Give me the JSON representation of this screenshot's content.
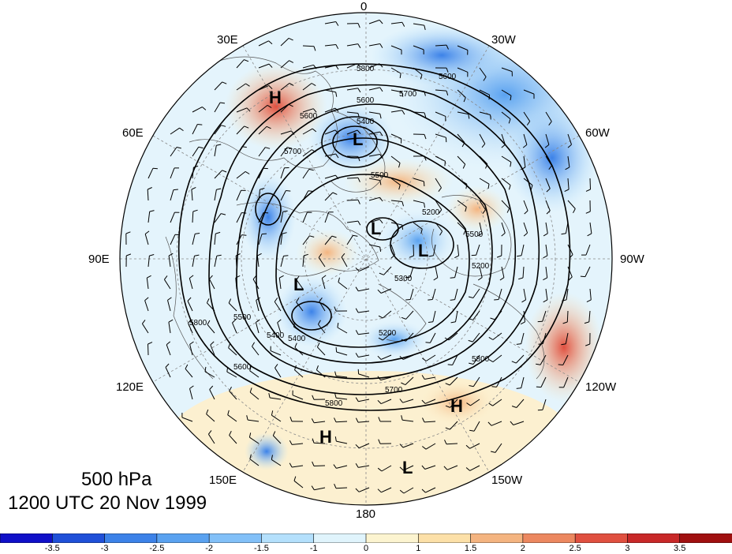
{
  "map": {
    "projection": "north-polar-stereographic",
    "level_label": "500 hPa",
    "time_label": "1200 UTC 20 Nov 1999",
    "longitude_labels": {
      "top": "0",
      "top_right": "30W",
      "right_upper": "60W",
      "right": "90W",
      "right_lower": "120W",
      "bottom_right": "150W",
      "bottom": "180",
      "bottom_left": "150E",
      "left_lower": "120E",
      "left": "90E",
      "left_upper": "60E",
      "top_left": "30E"
    },
    "contour_labels": [
      "5800",
      "5700",
      "5600",
      "5400",
      "5500",
      "5200",
      "5300",
      "5700",
      "5600",
      "5400",
      "5800",
      "5800",
      "5700",
      "5500",
      "5600",
      "5800",
      "5200",
      "5500",
      "5600",
      "5400",
      "5200"
    ],
    "pressure_centers": [
      {
        "type": "H",
        "name": "high-over-europe"
      },
      {
        "type": "L",
        "name": "low-near-norway"
      },
      {
        "type": "L",
        "name": "low-over-siberia"
      },
      {
        "type": "L",
        "name": "low-near-pole"
      },
      {
        "type": "L",
        "name": "low-over-canada"
      },
      {
        "type": "H",
        "name": "high-north-pacific"
      },
      {
        "type": "H",
        "name": "high-bering"
      },
      {
        "type": "L",
        "name": "low-central-pacific"
      }
    ],
    "colors": {
      "land_outline": "#555555",
      "contour": "#000000",
      "grid": "#888888"
    }
  },
  "colorbar": {
    "ticks": [
      "-3.5",
      "-3",
      "-2.5",
      "-2",
      "-1.5",
      "-1",
      "0",
      "1",
      "1.5",
      "2",
      "2.5",
      "3",
      "3.5"
    ],
    "colors": [
      "#1010c8",
      "#2050d8",
      "#3c82e8",
      "#5aa2f0",
      "#82c0f8",
      "#b4e0fc",
      "#e0f4fc",
      "#fcf4d0",
      "#fce0a8",
      "#f4b480",
      "#ec8860",
      "#e05040",
      "#c82828",
      "#a01010"
    ]
  }
}
